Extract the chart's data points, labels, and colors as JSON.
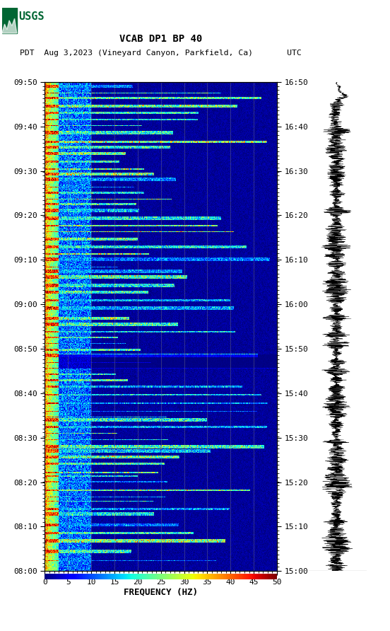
{
  "title_line1": "VCAB DP1 BP 40",
  "title_line2": "PDT  Aug 3,2023 (Vineyard Canyon, Parkfield, Ca)       UTC",
  "xlabel": "FREQUENCY (HZ)",
  "freq_min": 0,
  "freq_max": 50,
  "freq_ticks": [
    0,
    5,
    10,
    15,
    20,
    25,
    30,
    35,
    40,
    45,
    50
  ],
  "time_labels_left": [
    "08:00",
    "08:10",
    "08:20",
    "08:30",
    "08:40",
    "08:50",
    "09:00",
    "09:10",
    "09:20",
    "09:30",
    "09:40",
    "09:50"
  ],
  "time_labels_right": [
    "15:00",
    "15:10",
    "15:20",
    "15:30",
    "15:40",
    "15:50",
    "16:00",
    "16:10",
    "16:20",
    "16:30",
    "16:40",
    "16:50"
  ],
  "colormap": "jet",
  "background": "#ffffff",
  "grid_color": "#808080",
  "grid_alpha": 0.55,
  "usgs_green": "#006633",
  "fig_width": 5.52,
  "fig_height": 8.92,
  "dpi": 100
}
